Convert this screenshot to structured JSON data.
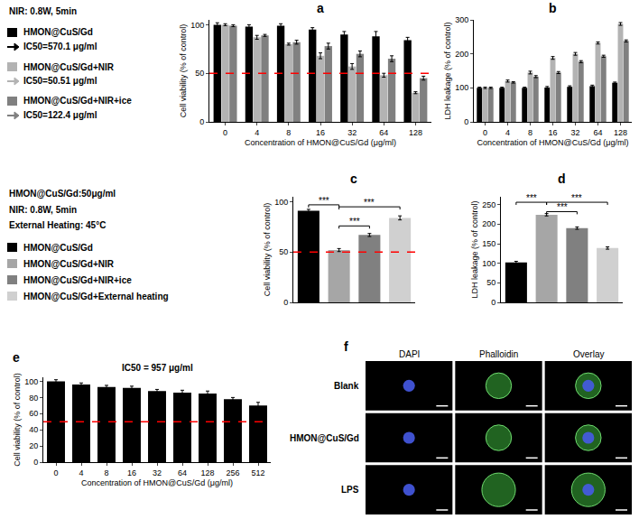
{
  "chart_data": [
    {
      "type": "bar",
      "title": "a",
      "categories": [
        "0",
        "4",
        "8",
        "16",
        "32",
        "64",
        "128"
      ],
      "xlabel": "Concentration of HMON@CuS/Gd (μg/ml)",
      "ylabel": "Cell viability (% of control)",
      "ylim": [
        0,
        105
      ],
      "yticks": [
        0,
        50,
        100
      ],
      "annotations": [
        "NIR: 0.8W, 5min"
      ],
      "legend": "left",
      "reference_line": {
        "y": 50,
        "color": "#ff0000",
        "line_style": "dash"
      },
      "series": [
        {
          "name": "HMON@CuS/Gd",
          "legend_note": "IC50=570.1 μg/ml",
          "color": "#000000",
          "values": [
            100,
            98,
            99,
            95,
            90,
            88,
            84
          ],
          "errors": [
            2,
            2,
            2,
            2,
            3,
            5,
            3
          ]
        },
        {
          "name": "HMON@CuS/Gd+NIR",
          "legend_note": "IC50=50.51 μg/ml",
          "color": "#b3b3b3",
          "values": [
            100,
            87,
            80,
            68,
            57,
            48,
            30
          ],
          "errors": [
            1,
            2,
            1,
            3,
            3,
            2,
            1
          ]
        },
        {
          "name": "HMON@CuS/Gd+NIR+ice",
          "legend_note": "IC50=122.4 μg/ml",
          "color": "#808080",
          "values": [
            99,
            89,
            82,
            78,
            70,
            65,
            45
          ],
          "errors": [
            1,
            1,
            2,
            3,
            3,
            3,
            2
          ]
        }
      ]
    },
    {
      "type": "bar",
      "title": "b",
      "categories": [
        "0",
        "4",
        "8",
        "16",
        "32",
        "64",
        "128"
      ],
      "xlabel": "Concentration of HMON@CuS/Gd (μg/ml)",
      "ylabel": "LDH leakage (% of control)",
      "ylim": [
        0,
        300
      ],
      "yticks": [
        0,
        100,
        200,
        300
      ],
      "series": [
        {
          "name": "HMON@CuS/Gd",
          "color": "#000000",
          "values": [
            100,
            100,
            100,
            101,
            103,
            105,
            115
          ],
          "errors": [
            2,
            2,
            2,
            3,
            3,
            3,
            2
          ]
        },
        {
          "name": "HMON@CuS/Gd+NIR",
          "color": "#b3b3b3",
          "values": [
            100,
            120,
            145,
            188,
            200,
            232,
            288
          ],
          "errors": [
            2,
            3,
            4,
            4,
            4,
            3,
            4
          ]
        },
        {
          "name": "HMON@CuS/Gd+NIR+ice",
          "color": "#808080",
          "values": [
            100,
            116,
            133,
            145,
            177,
            193,
            238
          ],
          "errors": [
            2,
            2,
            3,
            3,
            3,
            3,
            3
          ]
        }
      ]
    },
    {
      "type": "bar",
      "title": "c",
      "categories": [
        "HMON@CuS/Gd",
        "HMON@CuS/Gd+NIR",
        "HMON@CuS/Gd+NIR+ice",
        "HMON@CuS/Gd+External heating"
      ],
      "values": [
        91,
        52,
        67,
        84
      ],
      "errors": [
        1.5,
        1.5,
        1.5,
        2
      ],
      "colors": [
        "#000000",
        "#a6a6a6",
        "#808080",
        "#d0d0d0"
      ],
      "ylabel": "Cell viability (% of control)",
      "ylim": [
        0,
        105
      ],
      "yticks": [
        0,
        50,
        100
      ],
      "tick_labels": "y",
      "annotations": [
        "HMON@CuS/Gd:50μg/ml",
        "NIR: 0.8W, 5min",
        "External Heating: 45°C"
      ],
      "legend": "left",
      "reference_line": {
        "y": 50,
        "color": "#ff0000",
        "line_style": "dash"
      },
      "brackets": [
        {
          "from": "HMON@CuS/Gd",
          "to": "HMON@CuS/Gd+NIR",
          "y": 97,
          "text": "***"
        },
        {
          "from": "HMON@CuS/Gd+NIR",
          "to": "HMON@CuS/Gd+External heating",
          "y": 95,
          "text": "***"
        },
        {
          "from": "HMON@CuS/Gd+NIR",
          "to": "HMON@CuS/Gd+NIR+ice",
          "y": 76,
          "text": "***"
        }
      ]
    },
    {
      "type": "bar",
      "title": "d",
      "categories": [
        "HMON@CuS/Gd",
        "HMON@CuS/Gd+NIR",
        "HMON@CuS/Gd+NIR+ice",
        "HMON@CuS/Gd+External heating"
      ],
      "values": [
        102,
        224,
        190,
        139
      ],
      "errors": [
        3,
        3,
        3,
        3
      ],
      "colors": [
        "#000000",
        "#a6a6a6",
        "#808080",
        "#d0d0d0"
      ],
      "ylabel": "LDH leakage (% of control)",
      "ylim": [
        0,
        270
      ],
      "yticks": [
        0,
        50,
        100,
        150,
        200,
        250
      ],
      "tick_labels": "y",
      "brackets": [
        {
          "from": "HMON@CuS/Gd",
          "to": "HMON@CuS/Gd+NIR",
          "y": 256,
          "text": "***"
        },
        {
          "from": "HMON@CuS/Gd+NIR",
          "to": "HMON@CuS/Gd+NIR+ice",
          "y": 232,
          "text": "***"
        },
        {
          "from": "HMON@CuS/Gd+NIR",
          "to": "HMON@CuS/Gd+External heating",
          "y": 256,
          "text": "***"
        }
      ]
    },
    {
      "type": "bar",
      "title": "e",
      "categories": [
        "0",
        "4",
        "8",
        "16",
        "32",
        "64",
        "128",
        "256",
        "512"
      ],
      "values": [
        100,
        96,
        93,
        92,
        88,
        86,
        85,
        78,
        70
      ],
      "errors": [
        2,
        2,
        2,
        2,
        2,
        3,
        3,
        2,
        4
      ],
      "color": "#000000",
      "xlabel": "Concentration of HMON@CuS/Gd (μg/ml)",
      "ylabel": "Cell viability (% of control)",
      "ylim": [
        0,
        105
      ],
      "yticks": [
        0,
        20,
        40,
        60,
        80,
        100
      ],
      "annotations": [
        "IC50 = 957 μg/ml"
      ],
      "reference_line": {
        "y": 50,
        "color": "#ff0000",
        "line_style": "dash"
      }
    },
    {
      "type": "image_grid",
      "title": "f",
      "columns": [
        "DAPI",
        "Phalloidin",
        "Overlay"
      ],
      "rows": [
        "Blank",
        "HMON@CuS/Gd",
        "LPS"
      ]
    }
  ]
}
